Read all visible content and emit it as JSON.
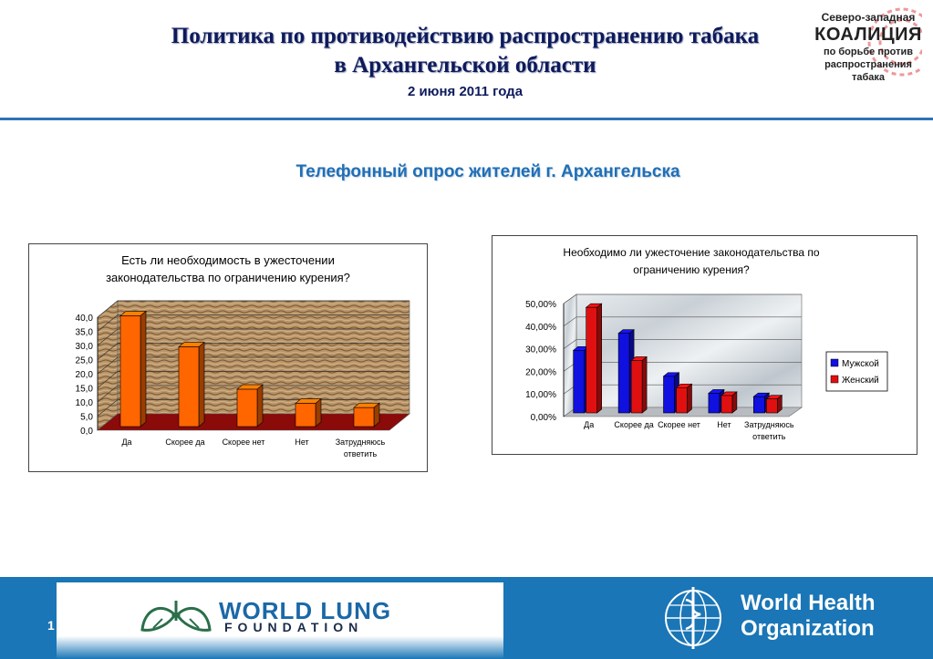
{
  "header": {
    "title_line1": "Политика по противодействию распространению табака",
    "title_line2": "в Архангельской области",
    "date": "2 июня 2011 года"
  },
  "logo": {
    "line1": "Северо-западная",
    "line2": "КОАЛИЦИЯ",
    "line3": "по борьбе против",
    "line4": "распространения",
    "line5": "табака"
  },
  "subtitle": "Телефонный опрос жителей г. Архангельска",
  "chart_data": [
    {
      "type": "bar",
      "title": "Есть ли необходимость в ужесточении законодательства по ограничению курения?",
      "title_lines": [
        "Есть ли необходимость в ужесточении",
        "законодательства по ограничению курения?"
      ],
      "categories": [
        "Да",
        "Скорее да",
        "Скорее нет",
        "Нет",
        "Затрудняюсь ответить"
      ],
      "values": [
        40.5,
        29.5,
        14.5,
        9.5,
        8.0
      ],
      "ylim": [
        0,
        40
      ],
      "ytick_labels": [
        "0,0",
        "5,0",
        "10,0",
        "15,0",
        "20,0",
        "25,0",
        "30,0",
        "35,0",
        "40,0"
      ],
      "bar_color": "#ff6600",
      "style": "3d"
    },
    {
      "type": "bar",
      "title": "Необходимо ли ужесточение законодательства по ограничению курения?",
      "title_lines": [
        "Необходимо ли ужесточение законодательства по",
        "ограничению курения?"
      ],
      "categories": [
        "Да",
        "Скорее да",
        "Скорее нет",
        "Нет",
        "Затрудняюсь ответить"
      ],
      "series": [
        {
          "name": "Мужской",
          "values": [
            28.5,
            36.0,
            17.0,
            9.5,
            8.0
          ],
          "color": "#1010e0"
        },
        {
          "name": "Женский",
          "values": [
            47.5,
            24.0,
            12.0,
            8.5,
            7.0
          ],
          "color": "#e01010"
        }
      ],
      "ylim": [
        0,
        50
      ],
      "ytick_labels": [
        "0,00%",
        "10,00%",
        "20,00%",
        "30,00%",
        "40,00%",
        "50,00%"
      ],
      "legend_position": "right",
      "style": "3d"
    }
  ],
  "footer": {
    "slide_number": "1",
    "wlf_line1": "WORLD LUNG",
    "wlf_line2": "FOUNDATION",
    "who_line1": "World Health",
    "who_line2": "Organization"
  }
}
